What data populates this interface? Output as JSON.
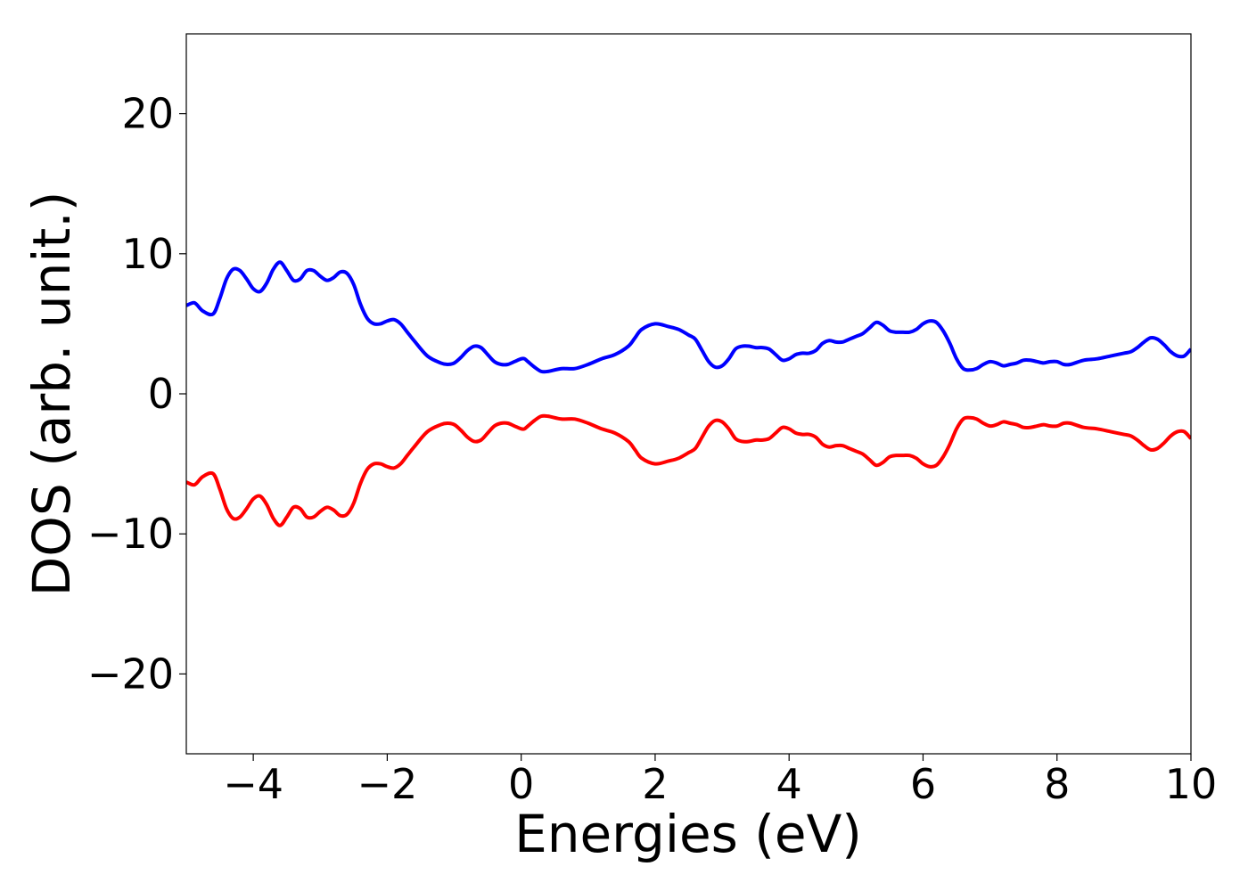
{
  "chart_data": {
    "type": "line",
    "title": "",
    "xlabel": "Energies (eV)",
    "ylabel": "DOS (arb. unit.)",
    "xlim": [
      -5,
      10
    ],
    "ylim": [
      -25.7,
      25.7
    ],
    "grid": false,
    "legend": "none",
    "x_ticks": [
      -4,
      -2,
      0,
      2,
      4,
      6,
      8,
      10
    ],
    "x_tick_labels": [
      "−4",
      "−2",
      "0",
      "2",
      "4",
      "6",
      "8",
      "10"
    ],
    "y_ticks": [
      -20,
      -10,
      0,
      10,
      20
    ],
    "y_tick_labels": [
      "−20",
      "−10",
      "0",
      "10",
      "20"
    ],
    "series": [
      {
        "color": "#0000ff",
        "x": [
          -5.0,
          -4.9,
          -4.85,
          -4.75,
          -4.6,
          -4.5,
          -4.4,
          -4.3,
          -4.2,
          -4.1,
          -4.0,
          -3.9,
          -3.8,
          -3.7,
          -3.6,
          -3.5,
          -3.4,
          -3.3,
          -3.2,
          -3.1,
          -3.0,
          -2.9,
          -2.8,
          -2.7,
          -2.6,
          -2.5,
          -2.4,
          -2.3,
          -2.2,
          -2.1,
          -2.0,
          -1.9,
          -1.8,
          -1.7,
          -1.6,
          -1.4,
          -1.2,
          -1.1,
          -1.0,
          -0.9,
          -0.8,
          -0.7,
          -0.6,
          -0.5,
          -0.4,
          -0.3,
          -0.2,
          -0.1,
          0.0,
          0.05,
          0.1,
          0.2,
          0.3,
          0.4,
          0.6,
          0.8,
          1.0,
          1.2,
          1.4,
          1.6,
          1.7,
          1.8,
          2.0,
          2.2,
          2.35,
          2.5,
          2.6,
          2.7,
          2.8,
          2.9,
          3.0,
          3.1,
          3.2,
          3.3,
          3.4,
          3.5,
          3.6,
          3.7,
          3.8,
          3.9,
          4.0,
          4.1,
          4.2,
          4.3,
          4.4,
          4.5,
          4.6,
          4.7,
          4.8,
          4.9,
          5.0,
          5.1,
          5.2,
          5.3,
          5.4,
          5.5,
          5.6,
          5.7,
          5.8,
          5.9,
          6.0,
          6.1,
          6.2,
          6.3,
          6.4,
          6.5,
          6.6,
          6.7,
          6.8,
          6.9,
          7.0,
          7.1,
          7.2,
          7.3,
          7.4,
          7.5,
          7.6,
          7.7,
          7.8,
          7.9,
          8.0,
          8.1,
          8.2,
          8.4,
          8.6,
          8.8,
          9.0,
          9.1,
          9.2,
          9.3,
          9.4,
          9.5,
          9.6,
          9.7,
          9.8,
          9.9,
          10.0
        ],
        "y": [
          6.3,
          6.5,
          6.4,
          5.9,
          5.7,
          6.8,
          8.2,
          8.9,
          8.8,
          8.2,
          7.5,
          7.3,
          7.9,
          8.9,
          9.4,
          8.8,
          8.1,
          8.2,
          8.8,
          8.8,
          8.4,
          8.1,
          8.3,
          8.7,
          8.6,
          7.8,
          6.4,
          5.4,
          5.0,
          5.0,
          5.2,
          5.3,
          5.0,
          4.4,
          3.8,
          2.7,
          2.2,
          2.1,
          2.2,
          2.6,
          3.1,
          3.4,
          3.3,
          2.8,
          2.3,
          2.1,
          2.1,
          2.3,
          2.5,
          2.5,
          2.3,
          1.9,
          1.6,
          1.6,
          1.8,
          1.8,
          2.1,
          2.5,
          2.8,
          3.4,
          4.0,
          4.6,
          5.0,
          4.8,
          4.6,
          4.2,
          3.9,
          3.1,
          2.3,
          1.9,
          2.0,
          2.5,
          3.2,
          3.4,
          3.4,
          3.3,
          3.3,
          3.2,
          2.8,
          2.4,
          2.5,
          2.8,
          2.9,
          2.9,
          3.1,
          3.6,
          3.8,
          3.7,
          3.7,
          3.9,
          4.1,
          4.3,
          4.7,
          5.1,
          4.9,
          4.5,
          4.4,
          4.4,
          4.4,
          4.6,
          5.0,
          5.2,
          5.1,
          4.5,
          3.6,
          2.5,
          1.8,
          1.7,
          1.8,
          2.1,
          2.3,
          2.2,
          2.0,
          2.1,
          2.2,
          2.4,
          2.4,
          2.3,
          2.2,
          2.3,
          2.3,
          2.1,
          2.1,
          2.4,
          2.5,
          2.7,
          2.9,
          3.0,
          3.3,
          3.7,
          4.0,
          3.9,
          3.5,
          3.0,
          2.7,
          2.7,
          3.2
        ]
      },
      {
        "color": "#ff0000",
        "x": [
          -5.0,
          -4.9,
          -4.85,
          -4.75,
          -4.6,
          -4.5,
          -4.4,
          -4.3,
          -4.2,
          -4.1,
          -4.0,
          -3.9,
          -3.8,
          -3.7,
          -3.6,
          -3.5,
          -3.4,
          -3.3,
          -3.2,
          -3.1,
          -3.0,
          -2.9,
          -2.8,
          -2.7,
          -2.6,
          -2.5,
          -2.4,
          -2.3,
          -2.2,
          -2.1,
          -2.0,
          -1.9,
          -1.8,
          -1.7,
          -1.6,
          -1.4,
          -1.2,
          -1.1,
          -1.0,
          -0.9,
          -0.8,
          -0.7,
          -0.6,
          -0.5,
          -0.4,
          -0.3,
          -0.2,
          -0.1,
          0.0,
          0.05,
          0.1,
          0.2,
          0.3,
          0.4,
          0.6,
          0.8,
          1.0,
          1.2,
          1.4,
          1.6,
          1.7,
          1.8,
          2.0,
          2.2,
          2.35,
          2.5,
          2.6,
          2.7,
          2.8,
          2.9,
          3.0,
          3.1,
          3.2,
          3.3,
          3.4,
          3.5,
          3.6,
          3.7,
          3.8,
          3.9,
          4.0,
          4.1,
          4.2,
          4.3,
          4.4,
          4.5,
          4.6,
          4.7,
          4.8,
          4.9,
          5.0,
          5.1,
          5.2,
          5.3,
          5.4,
          5.5,
          5.6,
          5.7,
          5.8,
          5.9,
          6.0,
          6.1,
          6.2,
          6.3,
          6.4,
          6.5,
          6.6,
          6.7,
          6.8,
          6.9,
          7.0,
          7.1,
          7.2,
          7.3,
          7.4,
          7.5,
          7.6,
          7.7,
          7.8,
          7.9,
          8.0,
          8.1,
          8.2,
          8.4,
          8.6,
          8.8,
          9.0,
          9.1,
          9.2,
          9.3,
          9.4,
          9.5,
          9.6,
          9.7,
          9.8,
          9.9,
          10.0
        ],
        "y": [
          -6.3,
          -6.5,
          -6.4,
          -5.9,
          -5.7,
          -6.8,
          -8.2,
          -8.9,
          -8.8,
          -8.2,
          -7.5,
          -7.3,
          -7.9,
          -8.9,
          -9.4,
          -8.8,
          -8.1,
          -8.2,
          -8.8,
          -8.8,
          -8.4,
          -8.1,
          -8.3,
          -8.7,
          -8.6,
          -7.8,
          -6.4,
          -5.4,
          -5.0,
          -5.0,
          -5.2,
          -5.3,
          -5.0,
          -4.4,
          -3.8,
          -2.7,
          -2.2,
          -2.1,
          -2.2,
          -2.6,
          -3.1,
          -3.4,
          -3.3,
          -2.8,
          -2.3,
          -2.1,
          -2.1,
          -2.3,
          -2.5,
          -2.5,
          -2.3,
          -1.9,
          -1.6,
          -1.6,
          -1.8,
          -1.8,
          -2.1,
          -2.5,
          -2.8,
          -3.4,
          -4.0,
          -4.6,
          -5.0,
          -4.8,
          -4.6,
          -4.2,
          -3.9,
          -3.1,
          -2.3,
          -1.9,
          -2.0,
          -2.5,
          -3.2,
          -3.4,
          -3.4,
          -3.3,
          -3.3,
          -3.2,
          -2.8,
          -2.4,
          -2.5,
          -2.8,
          -2.9,
          -2.9,
          -3.1,
          -3.6,
          -3.8,
          -3.7,
          -3.7,
          -3.9,
          -4.1,
          -4.3,
          -4.7,
          -5.1,
          -4.9,
          -4.5,
          -4.4,
          -4.4,
          -4.4,
          -4.6,
          -5.0,
          -5.2,
          -5.1,
          -4.5,
          -3.6,
          -2.5,
          -1.8,
          -1.7,
          -1.8,
          -2.1,
          -2.3,
          -2.2,
          -2.0,
          -2.1,
          -2.2,
          -2.4,
          -2.4,
          -2.3,
          -2.2,
          -2.3,
          -2.3,
          -2.1,
          -2.1,
          -2.4,
          -2.5,
          -2.7,
          -2.9,
          -3.0,
          -3.3,
          -3.7,
          -4.0,
          -3.9,
          -3.5,
          -3.0,
          -2.7,
          -2.7,
          -3.2
        ]
      }
    ]
  }
}
